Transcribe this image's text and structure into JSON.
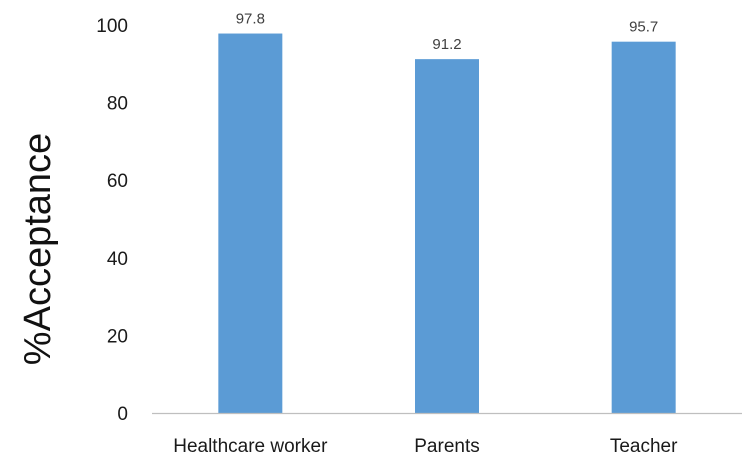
{
  "chart_data": {
    "type": "bar",
    "title": "",
    "xlabel": "",
    "ylabel": "%Acceptance",
    "categories": [
      "Healthcare worker",
      "Parents",
      "Teacher"
    ],
    "values": [
      97.8,
      91.2,
      95.7
    ],
    "data_labels": [
      "97.8",
      "91.2",
      "95.7"
    ],
    "ylim": [
      0,
      100
    ],
    "yticks": [
      0,
      20,
      40,
      60,
      80,
      100
    ],
    "grid": false,
    "legend": "none",
    "bar_color": "#5b9bd5",
    "axis_color": "#bfbfbf"
  }
}
